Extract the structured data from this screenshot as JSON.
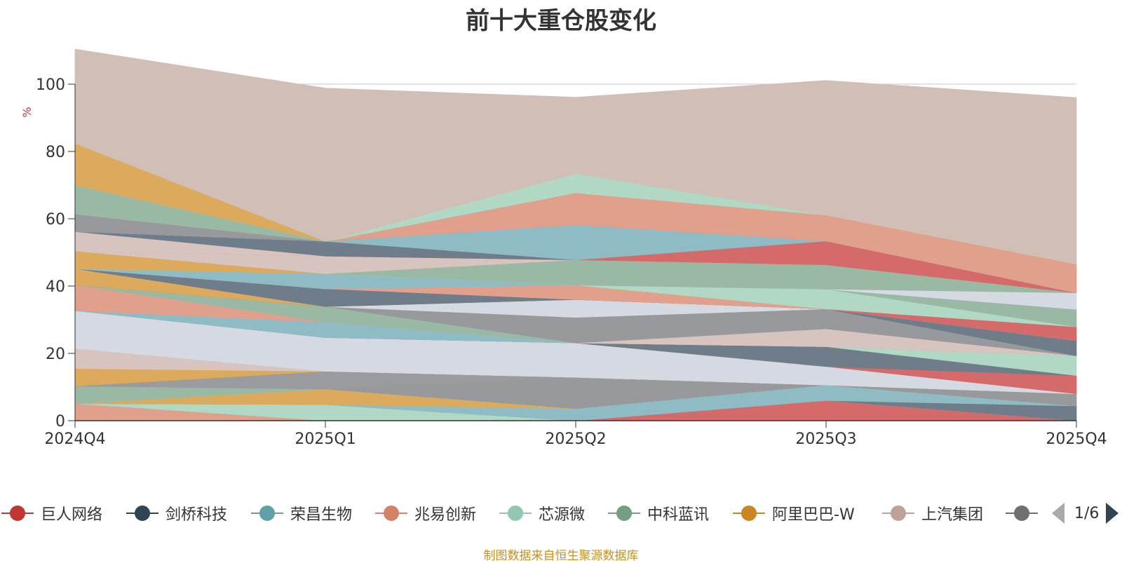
{
  "title": "前十大重仓股变化",
  "source_note": "制图数据来自恒生聚源数据库",
  "pager": {
    "text": "1/6"
  },
  "chart_data": {
    "type": "area",
    "stacked": true,
    "ylabel": "%",
    "ylim": [
      0,
      100
    ],
    "yticks": [
      "0",
      "20",
      "40",
      "60",
      "80",
      "100"
    ],
    "categories": [
      "2024Q4",
      "2025Q1",
      "2025Q2",
      "2025Q3",
      "2025Q4"
    ],
    "grid": true,
    "legend_position": "bottom",
    "layers": [
      {
        "name": "兆易创新",
        "color": "#e0a08c",
        "values": [
          5.1,
          0.0,
          0.0,
          0.0,
          0.0
        ]
      },
      {
        "name": "芯源微",
        "color": "#b0d8c4",
        "values": [
          0.0,
          0.0,
          0.0,
          0.0,
          0.0
        ]
      },
      {
        "name": "巨人网络",
        "color": "#d46a6a",
        "values": [
          0.0,
          0.0,
          0.0,
          6.0,
          0.0
        ]
      },
      {
        "name": "芯源微",
        "color": "#b0d8c4",
        "values": [
          0.0,
          4.8,
          0.0,
          0.0,
          0.0
        ]
      },
      {
        "name": "剑桥科技",
        "color": "#6e7d89",
        "values": [
          0.0,
          0.0,
          0.0,
          0.0,
          4.4
        ]
      },
      {
        "name": "荣昌生物",
        "color": "#8fbcc4",
        "values": [
          0.0,
          0.0,
          3.6,
          4.6,
          0.0
        ]
      },
      {
        "name": "阿里巴巴-W",
        "color": "#dcaa5c",
        "values": [
          0.0,
          4.6,
          0.0,
          0.0,
          0.0
        ]
      },
      {
        "name": "中科蓝讯",
        "color": "#9ab9a4",
        "values": [
          5.2,
          0.0,
          0.0,
          0.0,
          0.0
        ]
      },
      {
        "name": "",
        "color": "#98999c",
        "values": [
          0.0,
          0.0,
          9.3,
          0.0,
          3.6
        ]
      },
      {
        "name": "",
        "color": "#9a9b9e",
        "values": [
          0.0,
          5.3,
          0.0,
          0.0,
          0.0
        ]
      },
      {
        "name": "阿里巴巴-W",
        "color": "#dcaa5c",
        "values": [
          5.2,
          0.0,
          0.0,
          0.0,
          0.0
        ]
      },
      {
        "name": "上汽集团",
        "color": "#d8c4bf",
        "values": [
          6.0,
          0.0,
          0.0,
          0.0,
          0.0
        ]
      },
      {
        "name": "",
        "color": "#d5dae2",
        "values": [
          11.2,
          10.0,
          10.2,
          5.5,
          0.0
        ]
      },
      {
        "name": "巨人网络",
        "color": "#d46a6a",
        "values": [
          0.0,
          0.0,
          0.0,
          0.0,
          5.4
        ]
      },
      {
        "name": "剑桥科技",
        "color": "#6e7d89",
        "values": [
          0.0,
          0.0,
          0.0,
          5.9,
          0.0
        ]
      },
      {
        "name": "芯源微",
        "color": "#b0d8c4",
        "values": [
          0.0,
          0.0,
          0.0,
          0.0,
          5.9
        ]
      },
      {
        "name": "荣昌生物",
        "color": "#8fbcc4",
        "values": [
          0.0,
          4.6,
          0.0,
          0.0,
          0.0
        ]
      },
      {
        "name": "兆易创新",
        "color": "#e0a08c",
        "values": [
          7.7,
          0.0,
          0.0,
          0.0,
          0.0
        ]
      },
      {
        "name": "中科蓝讯",
        "color": "#9ab9a4",
        "values": [
          0.0,
          4.6,
          0.0,
          0.0,
          0.0
        ]
      },
      {
        "name": "上汽集团",
        "color": "#d8c4bf",
        "values": [
          0.0,
          0.0,
          0.0,
          5.3,
          0.0
        ]
      },
      {
        "name": "",
        "color": "#98999c",
        "values": [
          0.0,
          0.0,
          7.6,
          5.9,
          0.0
        ]
      },
      {
        "name": "剑桥科技",
        "color": "#6e7d89",
        "values": [
          0.0,
          0.0,
          0.0,
          0.0,
          4.5
        ]
      },
      {
        "name": "阿里巴巴-W",
        "color": "#dcaa5c",
        "values": [
          4.8,
          0.0,
          0.0,
          0.0,
          0.0
        ]
      },
      {
        "name": "",
        "color": "#d5dae2",
        "values": [
          0.0,
          0.0,
          5.3,
          0.0,
          0.0
        ]
      },
      {
        "name": "巨人网络",
        "color": "#d46a6a",
        "values": [
          0.0,
          0.0,
          0.0,
          0.0,
          4.1
        ]
      },
      {
        "name": "剑桥科技",
        "color": "#6e7d89",
        "values": [
          0.0,
          5.3,
          0.0,
          0.0,
          0.0
        ]
      },
      {
        "name": "兆易创新",
        "color": "#e0a08c",
        "values": [
          0.0,
          0.0,
          4.3,
          0.0,
          0.0
        ]
      },
      {
        "name": "芯源微",
        "color": "#b0d8c4",
        "values": [
          0.0,
          0.0,
          0.0,
          5.9,
          0.0
        ]
      },
      {
        "name": "中科蓝讯",
        "color": "#9ab9a4",
        "values": [
          0.0,
          0.0,
          0.0,
          0.0,
          5.2
        ]
      },
      {
        "name": "荣昌生物",
        "color": "#8fbcc4",
        "values": [
          0.0,
          4.5,
          0.0,
          0.0,
          0.0
        ]
      },
      {
        "name": "",
        "color": "#d5dae2",
        "values": [
          0.0,
          0.0,
          0.0,
          0.0,
          4.9
        ]
      },
      {
        "name": "中科蓝讯",
        "color": "#9ab9a4",
        "values": [
          0.0,
          0.0,
          7.5,
          7.2,
          0.0
        ]
      },
      {
        "name": "阿里巴巴-W",
        "color": "#dcaa5c",
        "values": [
          5.2,
          0.0,
          0.0,
          0.0,
          0.0
        ]
      },
      {
        "name": "上汽集团",
        "color": "#d8c4bf",
        "values": [
          0.0,
          5.2,
          0.0,
          0.0,
          0.0
        ]
      },
      {
        "name": "巨人网络",
        "color": "#d46a6a",
        "values": [
          0.0,
          0.0,
          0.0,
          7.1,
          0.0
        ]
      },
      {
        "name": "上汽集团",
        "color": "#d8c4bf",
        "values": [
          5.8,
          0.0,
          0.0,
          0.0,
          0.0
        ]
      },
      {
        "name": "剑桥科技",
        "color": "#6e7d89",
        "values": [
          0.0,
          4.4,
          0.0,
          0.0,
          0.0
        ]
      },
      {
        "name": "荣昌生物",
        "color": "#8fbcc4",
        "values": [
          0.0,
          0.0,
          10.4,
          0.0,
          0.0
        ]
      },
      {
        "name": "",
        "color": "#98999c",
        "values": [
          5.2,
          0.0,
          0.0,
          0.0,
          0.0
        ]
      },
      {
        "name": "兆易创新",
        "color": "#e0a08c",
        "values": [
          0.0,
          0.0,
          9.5,
          7.7,
          8.5
        ]
      },
      {
        "name": "中科蓝讯",
        "color": "#9ab9a4",
        "values": [
          8.6,
          0.0,
          0.0,
          0.0,
          0.0
        ]
      },
      {
        "name": "芯源微",
        "color": "#b0d8c4",
        "values": [
          0.0,
          0.0,
          5.8,
          0.0,
          0.0
        ]
      },
      {
        "name": "阿里巴巴-W",
        "color": "#dcaa5c",
        "values": [
          12.4,
          0.0,
          0.0,
          0.0,
          0.0
        ]
      },
      {
        "name": "上汽集团",
        "color": "#d0beb7",
        "values": [
          28.0,
          45.5,
          22.6,
          40.0,
          49.5
        ]
      }
    ]
  },
  "legend": {
    "items": [
      {
        "label": "巨人网络",
        "color": "#c23531"
      },
      {
        "label": "剑桥科技",
        "color": "#2f4554"
      },
      {
        "label": "荣昌生物",
        "color": "#61a0a8"
      },
      {
        "label": "兆易创新",
        "color": "#d48265"
      },
      {
        "label": "芯源微",
        "color": "#91c7ae"
      },
      {
        "label": "中科蓝讯",
        "color": "#749f83"
      },
      {
        "label": "阿里巴巴-W",
        "color": "#ca8622"
      },
      {
        "label": "上汽集团",
        "color": "#bda29a"
      },
      {
        "label": "",
        "color": "#6e7074"
      }
    ]
  }
}
